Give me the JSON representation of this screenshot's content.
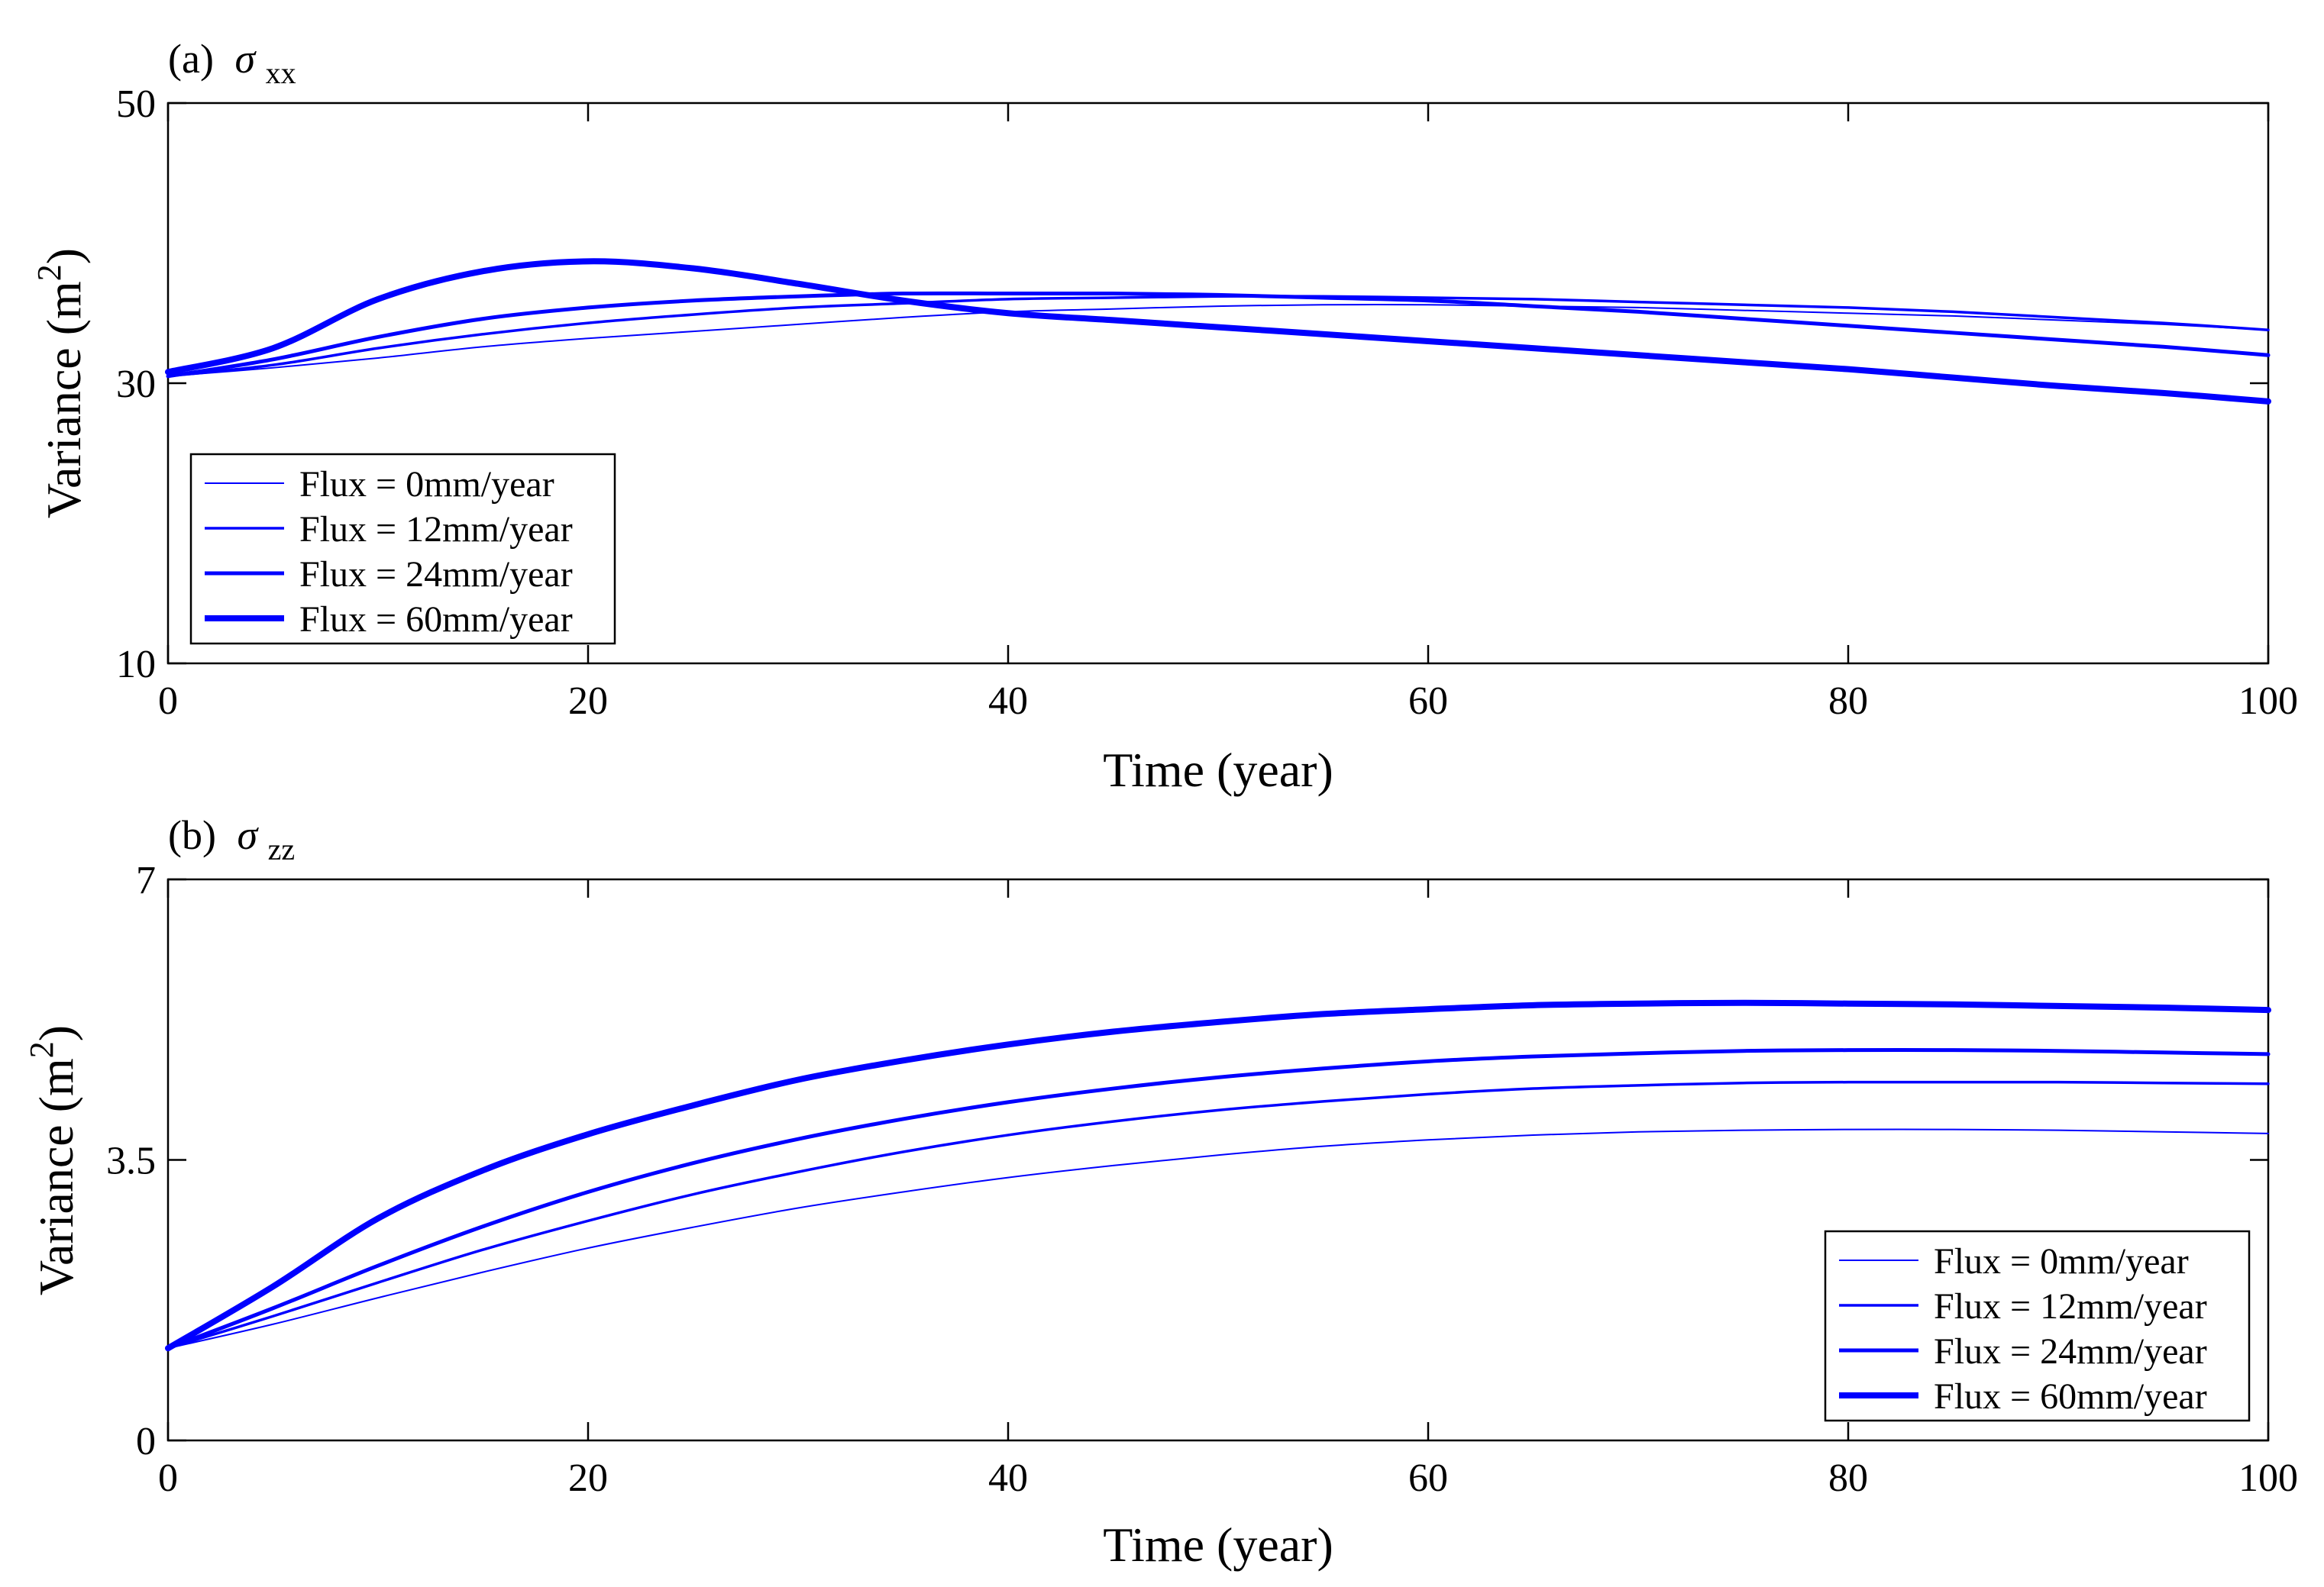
{
  "chart_data": [
    {
      "type": "line",
      "panel_label": "(a)",
      "title_symbol": "σ",
      "title_subscript": "xx",
      "xlabel": "Time (year)",
      "ylabel_prefix": "Variance (m",
      "ylabel_sup": "2",
      "ylabel_suffix": ")",
      "xlim": [
        0,
        100
      ],
      "ylim": [
        10,
        50
      ],
      "xticks": [
        0,
        20,
        40,
        60,
        80,
        100
      ],
      "yticks": [
        10,
        30,
        50
      ],
      "legend_position": "bottom-left",
      "color": "#0000ff",
      "x": [
        0,
        5,
        10,
        15,
        20,
        25,
        30,
        35,
        40,
        45,
        50,
        55,
        60,
        65,
        70,
        75,
        80,
        85,
        90,
        95,
        100
      ],
      "series": [
        {
          "name": "Flux = 0mm/year",
          "linewidth": 2,
          "values": [
            30.5,
            31.1,
            31.8,
            32.6,
            33.2,
            33.7,
            34.2,
            34.7,
            35.1,
            35.3,
            35.5,
            35.6,
            35.6,
            35.5,
            35.4,
            35.2,
            35.0,
            34.8,
            34.5,
            34.2,
            33.8
          ]
        },
        {
          "name": "Flux = 12mm/year",
          "linewidth": 3.5,
          "values": [
            30.5,
            31.3,
            32.5,
            33.5,
            34.3,
            34.9,
            35.4,
            35.7,
            36.0,
            36.1,
            36.2,
            36.2,
            36.1,
            36.0,
            35.8,
            35.6,
            35.4,
            35.1,
            34.7,
            34.3,
            33.8
          ]
        },
        {
          "name": "Flux = 24mm/year",
          "linewidth": 5,
          "values": [
            30.5,
            31.7,
            33.3,
            34.6,
            35.4,
            35.9,
            36.2,
            36.4,
            36.4,
            36.4,
            36.3,
            36.1,
            35.9,
            35.5,
            35.1,
            34.6,
            34.1,
            33.6,
            33.1,
            32.6,
            32.0
          ]
        },
        {
          "name": "Flux = 60mm/year",
          "linewidth": 8,
          "values": [
            30.8,
            32.5,
            36.0,
            38.0,
            38.7,
            38.2,
            37.1,
            35.9,
            35.0,
            34.5,
            34.0,
            33.5,
            33.0,
            32.5,
            32.0,
            31.5,
            31.0,
            30.4,
            29.8,
            29.3,
            28.7
          ]
        }
      ]
    },
    {
      "type": "line",
      "panel_label": "(b)",
      "title_symbol": "σ",
      "title_subscript": "zz",
      "xlabel": "Time (year)",
      "ylabel_prefix": "Variance (m",
      "ylabel_sup": "2",
      "ylabel_suffix": ")",
      "xlim": [
        0,
        100
      ],
      "ylim": [
        0,
        7
      ],
      "xticks": [
        0,
        20,
        40,
        60,
        80,
        100
      ],
      "yticks": [
        0,
        3.5,
        7
      ],
      "legend_position": "bottom-right",
      "color": "#0000ff",
      "x": [
        0,
        5,
        10,
        15,
        20,
        25,
        30,
        35,
        40,
        45,
        50,
        55,
        60,
        65,
        70,
        75,
        80,
        85,
        90,
        95,
        100
      ],
      "series": [
        {
          "name": "Flux = 0mm/year",
          "linewidth": 2,
          "values": [
            1.15,
            1.45,
            1.78,
            2.1,
            2.4,
            2.66,
            2.9,
            3.1,
            3.28,
            3.43,
            3.56,
            3.67,
            3.75,
            3.81,
            3.85,
            3.87,
            3.88,
            3.88,
            3.87,
            3.85,
            3.83
          ]
        },
        {
          "name": "Flux = 12mm/year",
          "linewidth": 3.5,
          "values": [
            1.15,
            1.55,
            1.97,
            2.38,
            2.74,
            3.07,
            3.35,
            3.6,
            3.81,
            3.98,
            4.12,
            4.23,
            4.32,
            4.39,
            4.43,
            4.46,
            4.47,
            4.47,
            4.47,
            4.46,
            4.45
          ]
        },
        {
          "name": "Flux = 24mm/year",
          "linewidth": 5,
          "values": [
            1.15,
            1.65,
            2.18,
            2.67,
            3.1,
            3.46,
            3.76,
            4.01,
            4.22,
            4.39,
            4.53,
            4.64,
            4.73,
            4.79,
            4.83,
            4.86,
            4.87,
            4.87,
            4.86,
            4.84,
            4.82
          ]
        },
        {
          "name": "Flux = 60mm/year",
          "linewidth": 8,
          "values": [
            1.15,
            1.92,
            2.77,
            3.37,
            3.82,
            4.18,
            4.5,
            4.74,
            4.94,
            5.1,
            5.22,
            5.32,
            5.38,
            5.43,
            5.45,
            5.46,
            5.45,
            5.44,
            5.42,
            5.4,
            5.37
          ]
        }
      ]
    }
  ]
}
